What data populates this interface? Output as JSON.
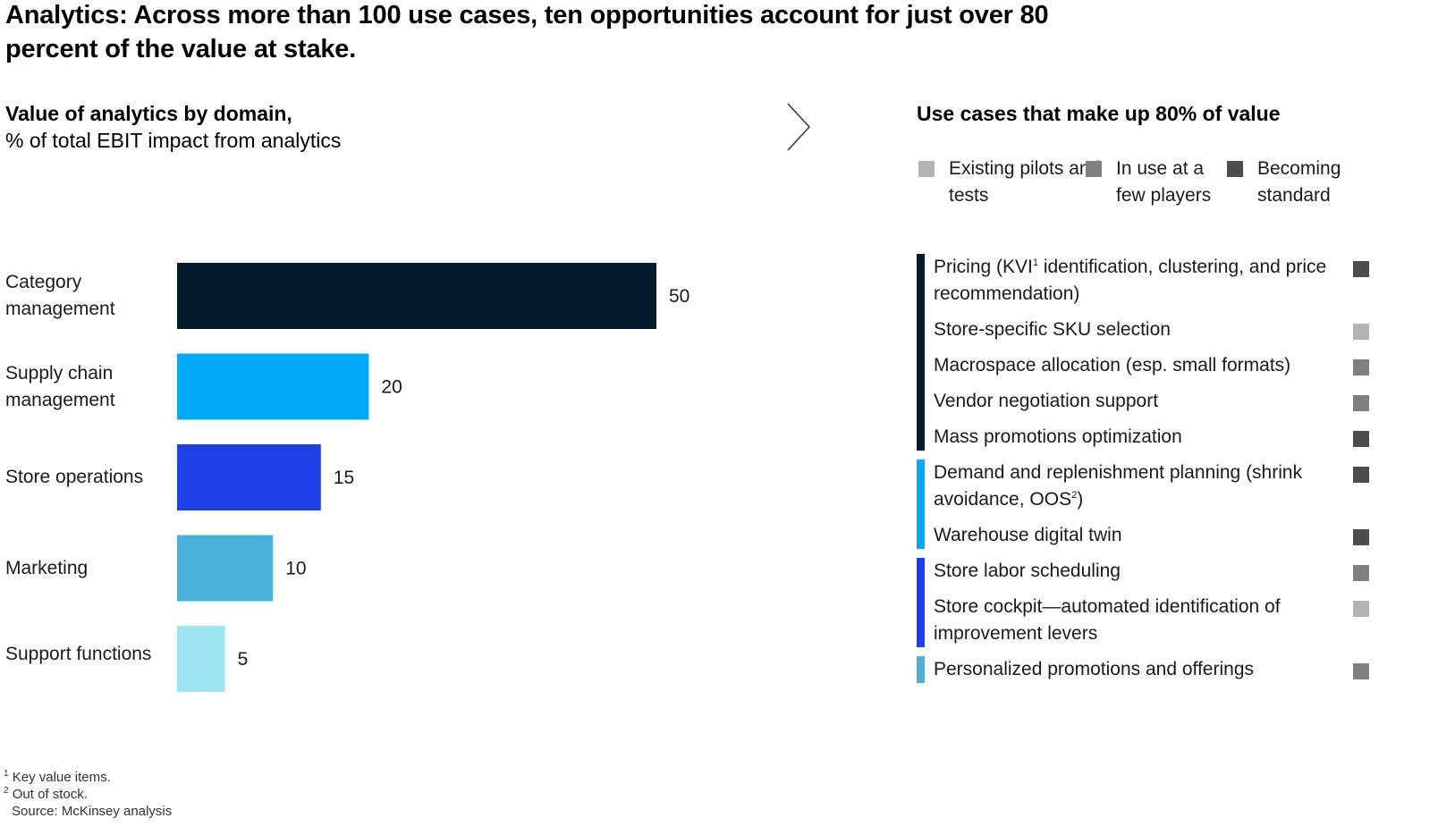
{
  "title": "Analytics: Across more than 100 use cases, ten opportunities account for just over 80 percent of the value at stake.",
  "left_header": {
    "bold": "Value of analytics by domain,",
    "sub": "% of total EBIT impact from analytics"
  },
  "right_header": "Use cases that make up 80% of value",
  "legend": [
    {
      "label": "Existing pilots and tests",
      "color": "#b3b3b3"
    },
    {
      "label": "In use at a few players",
      "color": "#808080"
    },
    {
      "label": "Becoming standard",
      "color": "#4d4d4d"
    }
  ],
  "chart_data": {
    "type": "bar",
    "orientation": "horizontal",
    "categories": [
      "Category management",
      "Supply chain management",
      "Store operations",
      "Marketing",
      "Support functions"
    ],
    "values": [
      50,
      20,
      15,
      10,
      5
    ],
    "colors": [
      "#051c2c",
      "#00a9f4",
      "#1f40e6",
      "#4cb1d8",
      "#9ee5ef"
    ],
    "xlabel": "",
    "ylabel": "",
    "xlim": [
      0,
      50
    ]
  },
  "use_case_groups": [
    {
      "color": "#051c2c",
      "items": [
        {
          "text_a": "Pricing (KVI",
          "sup": "1",
          "text_b": " identification, clustering, and price recommendation)",
          "status": "#4d4d4d"
        },
        {
          "text_a": "Store-specific SKU selection",
          "sup": "",
          "text_b": "",
          "status": "#b3b3b3"
        },
        {
          "text_a": "Macrospace allocation (esp. small formats)",
          "sup": "",
          "text_b": "",
          "status": "#808080"
        },
        {
          "text_a": "Vendor negotiation support",
          "sup": "",
          "text_b": "",
          "status": "#808080"
        },
        {
          "text_a": "Mass promotions optimization",
          "sup": "",
          "text_b": "",
          "status": "#4d4d4d"
        }
      ]
    },
    {
      "color": "#00a9f4",
      "items": [
        {
          "text_a": "Demand and replenishment planning (shrink avoidance, OOS",
          "sup": "2",
          "text_b": ")",
          "status": "#4d4d4d"
        },
        {
          "text_a": "Warehouse digital twin",
          "sup": "",
          "text_b": "",
          "status": "#4d4d4d"
        }
      ]
    },
    {
      "color": "#1f40e6",
      "items": [
        {
          "text_a": "Store labor scheduling",
          "sup": "",
          "text_b": "",
          "status": "#808080"
        },
        {
          "text_a": "Store cockpit—automated identification of improvement levers",
          "sup": "",
          "text_b": "",
          "status": "#b3b3b3"
        }
      ]
    },
    {
      "color": "#4cb1d8",
      "items": [
        {
          "text_a": "Personalized promotions and offerings",
          "sup": "",
          "text_b": "",
          "status": "#808080"
        }
      ]
    }
  ],
  "footnotes": {
    "fn1_mark": "1",
    "fn1_text": "Key value items.",
    "fn2_mark": "2",
    "fn2_text": "Out of stock.",
    "source": "Source: McKinsey analysis"
  }
}
